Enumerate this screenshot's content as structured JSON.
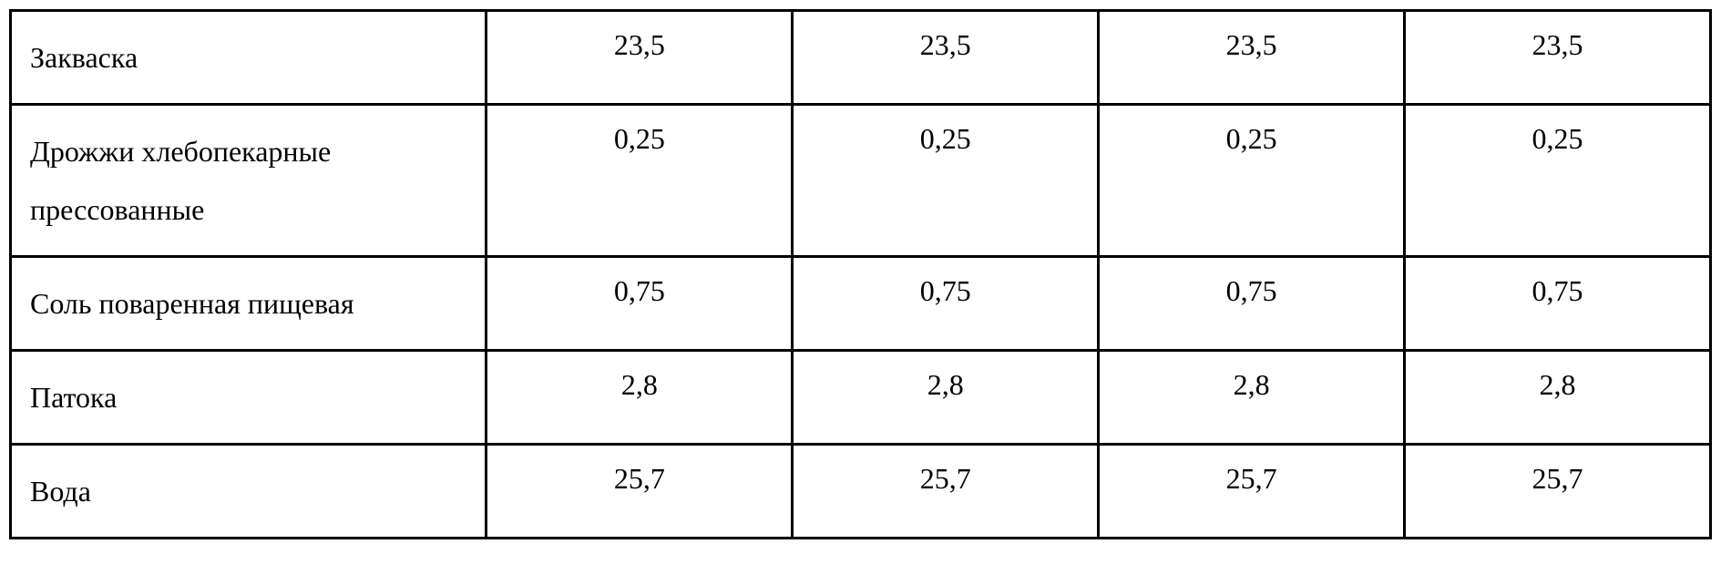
{
  "table": {
    "type": "table",
    "background_color": "#ffffff",
    "border_color": "#000000",
    "border_width": 3,
    "text_color": "#000000",
    "font_family": "Times New Roman",
    "label_fontsize": 32,
    "value_fontsize": 32,
    "column_widths_pct": [
      28,
      18,
      18,
      18,
      18
    ],
    "label_align": "left",
    "value_align": "center",
    "rows": [
      {
        "label": "Закваска",
        "values": [
          "23,5",
          "23,5",
          "23,5",
          "23,5"
        ]
      },
      {
        "label": "Дрожжи хлебопекарные прессованные",
        "values": [
          "0,25",
          "0,25",
          "0,25",
          "0,25"
        ]
      },
      {
        "label": "Соль поваренная пищевая",
        "values": [
          "0,75",
          "0,75",
          "0,75",
          "0,75"
        ]
      },
      {
        "label": "Патока",
        "values": [
          "2,8",
          "2,8",
          "2,8",
          "2,8"
        ]
      },
      {
        "label": "Вода",
        "values": [
          "25,7",
          "25,7",
          "25,7",
          "25,7"
        ]
      }
    ]
  }
}
